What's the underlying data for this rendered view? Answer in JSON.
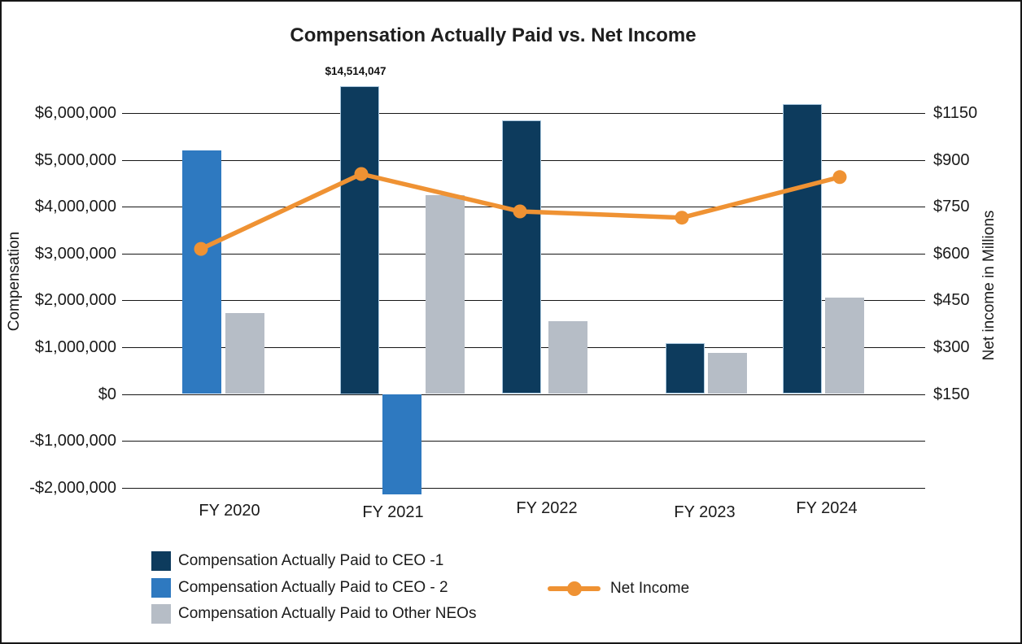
{
  "title": "Compensation Actually Paid vs. Net Income",
  "chart_data": {
    "type": "bar",
    "subtype": "bar-line-combo",
    "categories": [
      "FY 2020",
      "FY 2021",
      "FY 2022",
      "FY 2023",
      "FY 2024"
    ],
    "series": [
      {
        "id": "ceo1",
        "name": "Compensation Actually Paid to CEO -1",
        "type": "bar",
        "color": "#0d3b5d",
        "values": [
          null,
          14514047,
          5850000,
          1080000,
          6200000
        ]
      },
      {
        "id": "ceo2",
        "name": "Compensation Actually Paid to CEO - 2",
        "type": "bar",
        "color": "#2e79c0",
        "values": [
          5200000,
          -2150000,
          null,
          null,
          null
        ]
      },
      {
        "id": "other",
        "name": "Compensation Actually Paid to Other NEOs",
        "type": "bar",
        "color": "#b6bdc6",
        "values": [
          1730000,
          4250000,
          1550000,
          870000,
          2060000
        ]
      },
      {
        "id": "net_income",
        "name": "Net Income",
        "type": "line",
        "axis": "right",
        "color": "#ef9233",
        "values": [
          615,
          855,
          735,
          715,
          845
        ]
      }
    ],
    "annotations": [
      {
        "text": "$14,514,047",
        "series": "ceo1",
        "category": "FY 2021"
      }
    ],
    "left_axis": {
      "label": "Compensation",
      "ticks": [
        "$6,000,000",
        "$5,000,000",
        "$4,000,000",
        "$3,000,000",
        "$2,000,000",
        "$1,000,000",
        "$0",
        "-$1,000,000",
        "-$2,000,000"
      ],
      "tick_values": [
        6000000,
        5000000,
        4000000,
        3000000,
        2000000,
        1000000,
        0,
        -1000000,
        -2000000
      ]
    },
    "right_axis": {
      "label": "Net income in Millions",
      "ticks": [
        "$1150",
        "$900",
        "$750",
        "$600",
        "$450",
        "$300",
        "$150"
      ],
      "tick_values": [
        1150,
        900,
        750,
        600,
        450,
        300,
        150
      ]
    },
    "grid": true,
    "legend_position": "bottom"
  }
}
